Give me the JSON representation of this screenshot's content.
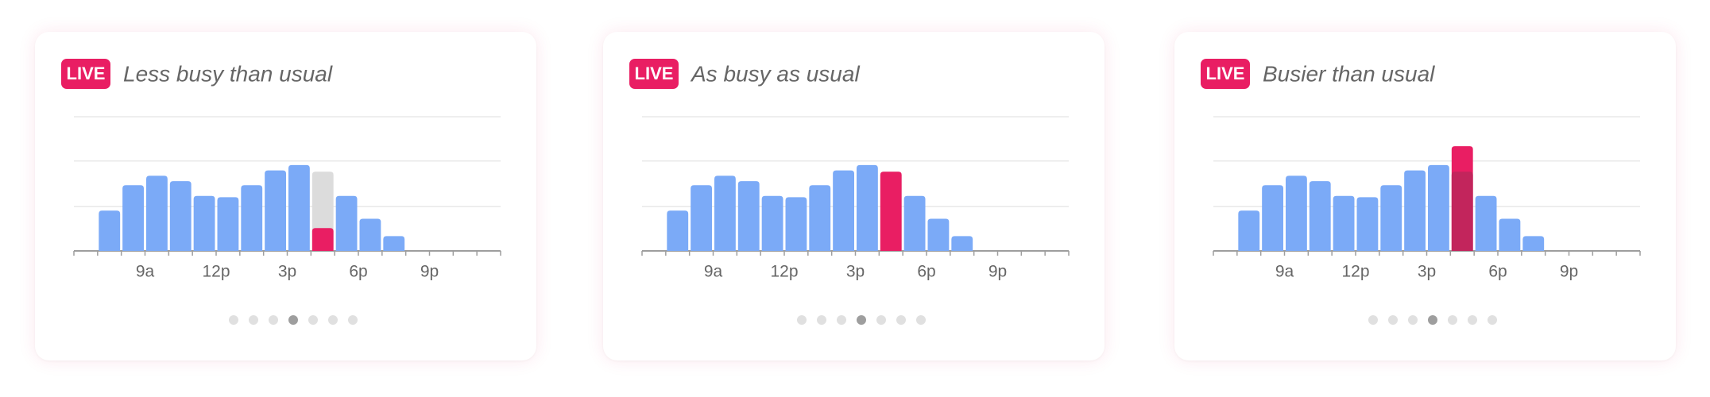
{
  "chart_data": [
    {
      "type": "bar",
      "badge": "LIVE",
      "title": "Less busy than usual",
      "categories": [
        null,
        null,
        null,
        "9a",
        null,
        null,
        "12p",
        null,
        null,
        "3p",
        null,
        null,
        "6p",
        null,
        null,
        "9p",
        null,
        null
      ],
      "series": [
        {
          "color": "#7baaf7",
          "values": [
            null,
            30,
            49,
            56,
            52,
            41,
            40,
            49,
            60,
            64,
            59,
            41,
            24,
            11,
            null,
            null,
            null,
            null
          ]
        },
        {
          "color": "#e91e63",
          "values": [
            null,
            null,
            null,
            null,
            null,
            null,
            null,
            null,
            null,
            null,
            17,
            null,
            null,
            null,
            null,
            null,
            null,
            null
          ]
        }
      ],
      "overlay_color": "#dcdcdc",
      "ylim": [
        0,
        100
      ],
      "yticks": [
        0,
        33,
        67,
        100
      ],
      "grid": true
    },
    {
      "type": "bar",
      "badge": "LIVE",
      "title": "As busy as usual",
      "categories": [
        null,
        null,
        null,
        "9a",
        null,
        null,
        "12p",
        null,
        null,
        "3p",
        null,
        null,
        "6p",
        null,
        null,
        "9p",
        null,
        null
      ],
      "series": [
        {
          "color": "#7baaf7",
          "values": [
            null,
            30,
            49,
            56,
            52,
            41,
            40,
            49,
            60,
            64,
            59,
            41,
            24,
            11,
            null,
            null,
            null,
            null
          ]
        },
        {
          "color": "#e91e63",
          "values": [
            null,
            null,
            null,
            null,
            null,
            null,
            null,
            null,
            null,
            null,
            59,
            null,
            null,
            null,
            null,
            null,
            null,
            null
          ]
        }
      ],
      "overlay_color": "#dcdcdc",
      "ylim": [
        0,
        100
      ],
      "yticks": [
        0,
        33,
        67,
        100
      ],
      "grid": true
    },
    {
      "type": "bar",
      "badge": "LIVE",
      "title": "Busier than usual",
      "categories": [
        null,
        null,
        null,
        "9a",
        null,
        null,
        "12p",
        null,
        null,
        "3p",
        null,
        null,
        "6p",
        null,
        null,
        "9p",
        null,
        null
      ],
      "series": [
        {
          "color": "#7baaf7",
          "values": [
            null,
            30,
            49,
            56,
            52,
            41,
            40,
            49,
            60,
            64,
            59,
            41,
            24,
            11,
            null,
            null,
            null,
            null
          ]
        },
        {
          "color": "#e91e63",
          "values": [
            null,
            null,
            null,
            null,
            null,
            null,
            null,
            null,
            null,
            null,
            78,
            null,
            null,
            null,
            null,
            null,
            null,
            null
          ]
        }
      ],
      "overlay_color": "#c2255c",
      "ylim": [
        0,
        100
      ],
      "yticks": [
        0,
        33,
        67,
        100
      ],
      "grid": true
    }
  ]
}
